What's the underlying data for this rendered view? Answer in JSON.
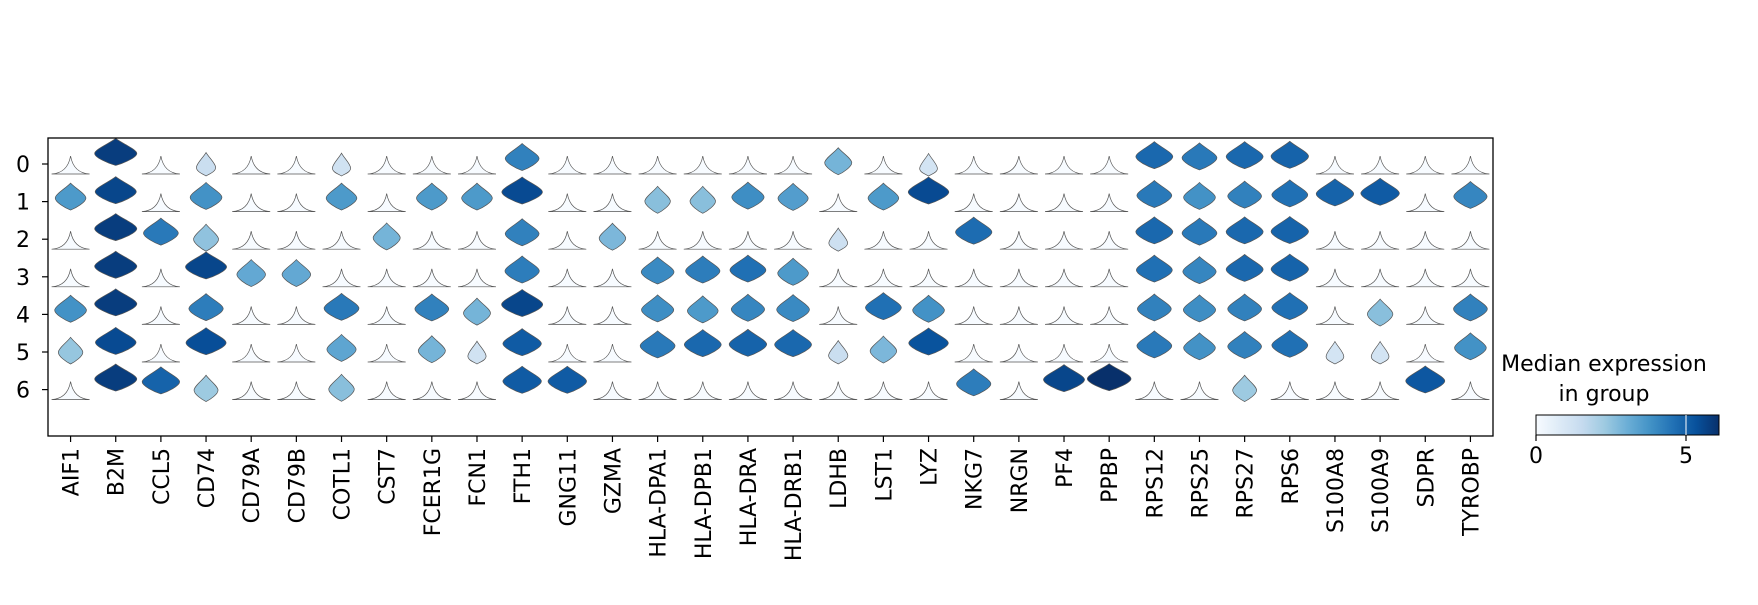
{
  "chart_data": {
    "type": "stacked-violin",
    "title": "",
    "xlabel": "",
    "ylabel": "",
    "groups": [
      "0",
      "1",
      "2",
      "3",
      "4",
      "5",
      "6"
    ],
    "genes": [
      "AIF1",
      "B2M",
      "CCL5",
      "CD74",
      "CD79A",
      "CD79B",
      "COTL1",
      "CST7",
      "FCER1G",
      "FCN1",
      "FTH1",
      "GNG11",
      "GZMA",
      "HLA-DPA1",
      "HLA-DPB1",
      "HLA-DRA",
      "HLA-DRB1",
      "LDHB",
      "LST1",
      "LYZ",
      "NKG7",
      "NRGN",
      "PF4",
      "PPBP",
      "RPS12",
      "RPS25",
      "RPS27",
      "RPS6",
      "S100A8",
      "S100A9",
      "SDPR",
      "TYROBP"
    ],
    "median_expression": [
      [
        0,
        5.8,
        0,
        1.4,
        0,
        0,
        1.2,
        0,
        0,
        0,
        4.2,
        0,
        0,
        0,
        0,
        0,
        0,
        2.9,
        0,
        1.1,
        0,
        0,
        0,
        0,
        4.8,
        4.4,
        4.8,
        4.9,
        0,
        0,
        0,
        0
      ],
      [
        3.6,
        5.6,
        0,
        3.8,
        0,
        0,
        3.6,
        0,
        3.6,
        3.6,
        5.5,
        0,
        0,
        2.6,
        2.6,
        3.9,
        3.5,
        0,
        3.6,
        5.5,
        0,
        0,
        0,
        0,
        4.4,
        3.8,
        4.2,
        4.6,
        4.9,
        5.1,
        0,
        4.1
      ],
      [
        0,
        5.8,
        4.4,
        2.5,
        0,
        0,
        0,
        2.9,
        0,
        0,
        4.2,
        0,
        2.8,
        0,
        0,
        0,
        0,
        1.3,
        0,
        0,
        4.7,
        0,
        0,
        0,
        4.8,
        4.4,
        4.8,
        4.9,
        0,
        0,
        0,
        0
      ],
      [
        0,
        5.8,
        0,
        5.6,
        3.2,
        3.2,
        0,
        0,
        0,
        0,
        4.3,
        0,
        0,
        4.0,
        4.3,
        4.6,
        3.6,
        0,
        0,
        0,
        0,
        0,
        0,
        0,
        4.6,
        4.1,
        4.8,
        4.9,
        0,
        0,
        0,
        0
      ],
      [
        3.8,
        5.8,
        0,
        4.3,
        0,
        0,
        4.4,
        0,
        4.2,
        2.9,
        5.6,
        0,
        0,
        3.9,
        3.6,
        4.1,
        4.0,
        0,
        4.6,
        3.8,
        0,
        0,
        0,
        0,
        4.2,
        3.9,
        4.2,
        4.6,
        0,
        2.6,
        0,
        4.2
      ],
      [
        2.4,
        5.5,
        0,
        5.4,
        0,
        0,
        3.3,
        0,
        2.9,
        1.2,
        5.1,
        0,
        0,
        4.4,
        4.8,
        4.9,
        4.8,
        1.4,
        2.8,
        5.3,
        0,
        0,
        0,
        0,
        4.4,
        3.8,
        4.2,
        4.6,
        1.1,
        1.1,
        0,
        3.8
      ],
      [
        0,
        5.8,
        4.9,
        2.3,
        0,
        0,
        2.6,
        0,
        0,
        0,
        5.1,
        5.1,
        0,
        0,
        0,
        0,
        0,
        0,
        0,
        0,
        4.3,
        0,
        5.6,
        6.1,
        0,
        0,
        2.3,
        0,
        0,
        0,
        5.2,
        0
      ]
    ],
    "x_tick_labels": [
      "AIF1",
      "B2M",
      "CCL5",
      "CD74",
      "CD79A",
      "CD79B",
      "COTL1",
      "CST7",
      "FCER1G",
      "FCN1",
      "FTH1",
      "GNG11",
      "GZMA",
      "HLA-DPA1",
      "HLA-DPB1",
      "HLA-DRA",
      "HLA-DRB1",
      "LDHB",
      "LST1",
      "LYZ",
      "NKG7",
      "NRGN",
      "PF4",
      "PPBP",
      "RPS12",
      "RPS25",
      "RPS27",
      "RPS6",
      "S100A8",
      "S100A9",
      "SDPR",
      "TYROBP"
    ],
    "y_tick_labels": [
      "0",
      "1",
      "2",
      "3",
      "4",
      "5",
      "6"
    ],
    "colorbar": {
      "title_line1": "Median expression",
      "title_line2": "in group",
      "min": 0,
      "max": 6.1,
      "ticks": [
        0,
        5
      ],
      "tick_labels": [
        "0",
        "5"
      ],
      "cmap_colors": [
        "#f7fbff",
        "#deebf7",
        "#c6dbef",
        "#9ecae1",
        "#6baed6",
        "#4292c6",
        "#2171b5",
        "#08519c",
        "#08306b"
      ]
    },
    "grid": false,
    "legend": "colorbar-right"
  }
}
